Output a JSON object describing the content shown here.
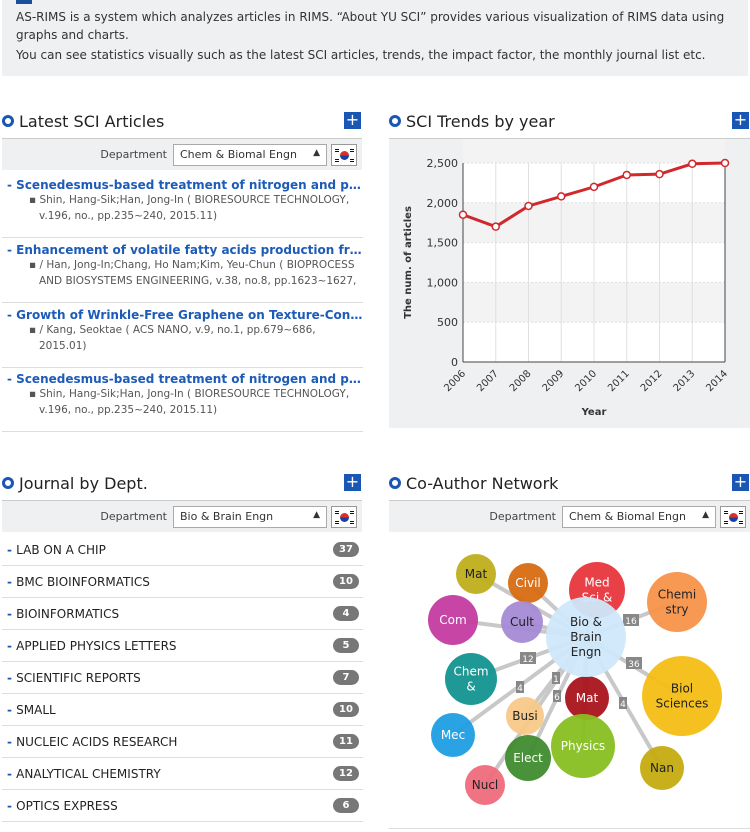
{
  "intro": {
    "line1": "AS-RIMS is a system which analyzes articles in RIMS. “About YU SCI” provides various visualization of RIMS data using graphs and charts.",
    "line2": "You can see statistics visually such as the latest SCI articles, trends, the impact  factor, the monthly journal list etc."
  },
  "latest": {
    "title": "Latest SCI Articles",
    "plus": "+",
    "dept_label": "Department",
    "dept_value": "Chem & Biomal Engn",
    "articles": [
      {
        "title": "Scenedesmus-based treatment of nitrogen and phosphorus",
        "meta": "▪ Shin, Hang-Sik;Han, Jong-In ( BIORESOURCE TECHNOLOGY, v.196, no.,  pp.235~240, 2015.11)"
      },
      {
        "title": "Enhancement of volatile fatty acids production from food waste",
        "meta": "▪ / Han, Jong-In;Chang, Ho Nam;Kim, Yeu-Chun ( BIOPROCESS AND BIOSYSTEMS ENGINEERING, v.38, no.8,  pp.1623~1627,"
      },
      {
        "title": "Growth of Wrinkle-Free Graphene on Texture-Controlled Platinum",
        "meta": "▪ / Kang, Seoktae ( ACS NANO, v.9, no.1,  pp.679~686, 2015.01)"
      },
      {
        "title": "Scenedesmus-based treatment of nitrogen and phosphorus",
        "meta": "▪ Shin, Hang-Sik;Han, Jong-In ( BIORESOURCE TECHNOLOGY, v.196, no.,  pp.235~240, 2015.11)"
      }
    ]
  },
  "trends": {
    "title": "SCI Trends by year",
    "plus": "+"
  },
  "chart_data": {
    "type": "line",
    "x": [
      "2006",
      "2007",
      "2008",
      "2009",
      "2010",
      "2011",
      "2012",
      "2013",
      "2014"
    ],
    "values": [
      1850,
      1700,
      1960,
      2080,
      2200,
      2350,
      2360,
      2490,
      2500
    ],
    "xlabel": "Year",
    "ylabel": "The num. of articles",
    "yticks": [
      "0",
      "500",
      "1,000",
      "1,500",
      "2,000",
      "2,500"
    ],
    "ylim": [
      0,
      2500
    ],
    "line_color": "#d0282b",
    "grid": true
  },
  "journals": {
    "title": "Journal by Dept.",
    "plus": "+",
    "dept_label": "Department",
    "dept_value": "Bio & Brain Engn",
    "items": [
      {
        "name": "LAB ON A CHIP",
        "count": "37"
      },
      {
        "name": "BMC BIOINFORMATICS",
        "count": "10"
      },
      {
        "name": "BIOINFORMATICS",
        "count": "4"
      },
      {
        "name": "APPLIED PHYSICS LETTERS",
        "count": "5"
      },
      {
        "name": "SCIENTIFIC REPORTS",
        "count": "7"
      },
      {
        "name": "SMALL",
        "count": "10"
      },
      {
        "name": "NUCLEIC ACIDS RESEARCH",
        "count": "11"
      },
      {
        "name": "ANALYTICAL CHEMISTRY",
        "count": "12"
      },
      {
        "name": "OPTICS EXPRESS",
        "count": "6"
      }
    ]
  },
  "network": {
    "title": "Co-Author Network",
    "plus": "+",
    "dept_label": "Department",
    "dept_value": "Chem & Biomal Engn",
    "center": {
      "l1": "Bio &",
      "l2": "Brain",
      "l3": "Engn",
      "color": "#cfe8fa"
    },
    "nodes": [
      {
        "key": "mat1",
        "l1": "Mat",
        "l2": "",
        "color": "#bfae1b"
      },
      {
        "key": "civil",
        "l1": "Civil",
        "l2": "",
        "color": "#d86b11"
      },
      {
        "key": "med",
        "l1": "Med",
        "l2": "Sci &",
        "color": "#e8363d"
      },
      {
        "key": "chem",
        "l1": "Chemi",
        "l2": "stry",
        "color": "#f7934a"
      },
      {
        "key": "com",
        "l1": "Com",
        "l2": "",
        "color": "#c43ba0"
      },
      {
        "key": "cult",
        "l1": "Cult",
        "l2": "",
        "color": "#a58ad4"
      },
      {
        "key": "chemE",
        "l1": "Chem",
        "l2": "&",
        "color": "#13938f"
      },
      {
        "key": "biol",
        "l1": "Biol",
        "l2": "Sciences",
        "color": "#f4be15"
      },
      {
        "key": "mat2",
        "l1": "Mat",
        "l2": "",
        "color": "#a9141b"
      },
      {
        "key": "busi",
        "l1": "Busi",
        "l2": "",
        "color": "#f8c888"
      },
      {
        "key": "mec",
        "l1": "Mec",
        "l2": "",
        "color": "#1f9ee3"
      },
      {
        "key": "elect",
        "l1": "Elect",
        "l2": "",
        "color": "#3f8c2e"
      },
      {
        "key": "phys",
        "l1": "Physics",
        "l2": "",
        "color": "#87bf21"
      },
      {
        "key": "nan",
        "l1": "Nan",
        "l2": "",
        "color": "#c4ac10"
      },
      {
        "key": "nucl",
        "l1": "Nucl",
        "l2": "",
        "color": "#ee6b7c"
      }
    ],
    "edge_labels": [
      "16",
      "12",
      "36",
      "4",
      "4",
      "1",
      "6"
    ],
    "edge_color": "#c8c8c8"
  }
}
